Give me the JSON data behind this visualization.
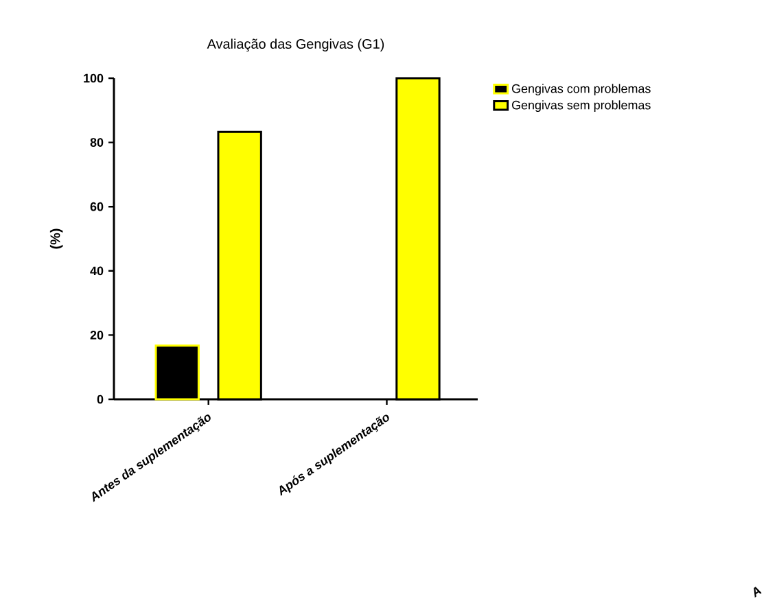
{
  "chart_data": {
    "type": "bar",
    "title": "Avaliação das Gengivas (G1)",
    "ylabel": "(%)",
    "categories": [
      "Antes da suplementação",
      "Após a suplementação"
    ],
    "series": [
      {
        "name": "Gengivas com problemas",
        "color": "#000000",
        "values": [
          16.7,
          null
        ]
      },
      {
        "name": "Gengivas sem problemas",
        "color": "#ffff00",
        "values": [
          83.3,
          100
        ]
      }
    ],
    "ylim": [
      0,
      100
    ],
    "yticks": [
      0,
      20,
      40,
      60,
      80,
      100
    ],
    "grid": false,
    "legend": "right",
    "annotations": [
      "A"
    ]
  }
}
